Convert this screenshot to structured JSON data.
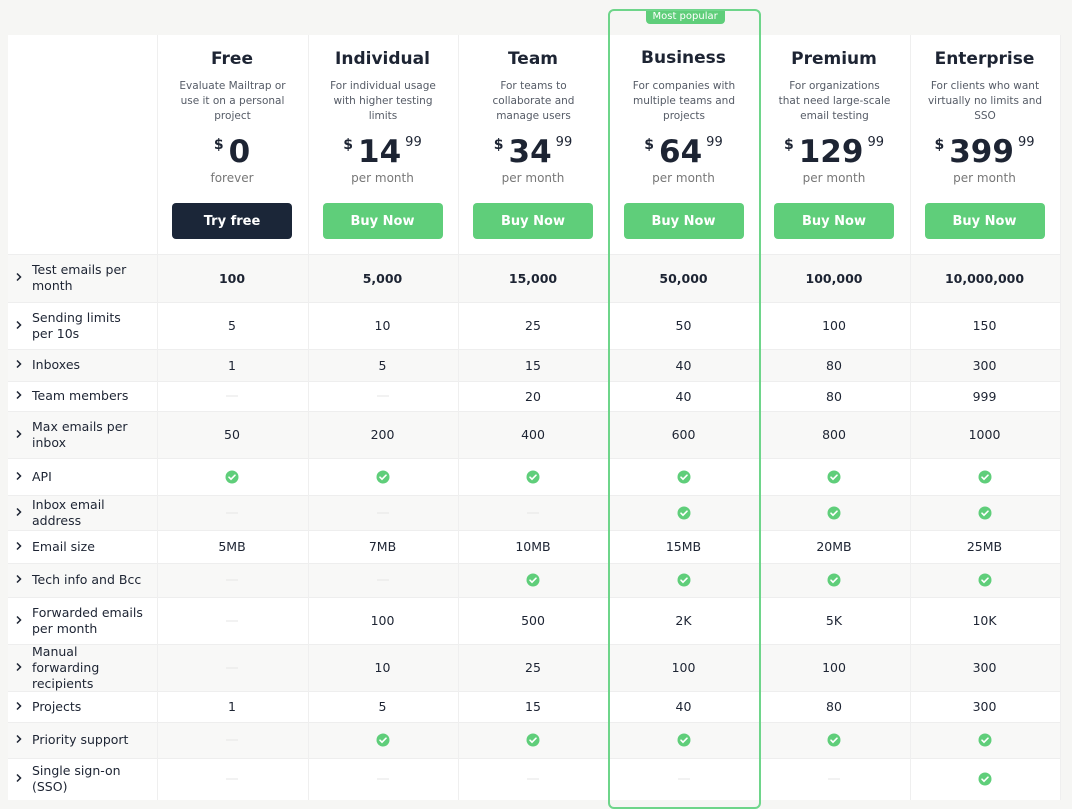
{
  "plans": [
    {
      "name": "Free",
      "description": "Evaluate Mailtrap or use it on a personal project",
      "currency": "$",
      "dollars": 0,
      "period": "forever",
      "button": "Try free"
    },
    {
      "name": "Individual",
      "description": "For individual usage with higher testing limits",
      "currency": "$",
      "dollars": 14,
      "cents": 99,
      "period": "per month",
      "button": "Buy Now"
    },
    {
      "name": "Team",
      "description": "For teams to collaborate and manage users",
      "currency": "$",
      "dollars": 34,
      "cents": 99,
      "period": "per month",
      "button": "Buy Now"
    },
    {
      "name": "Business",
      "badge": "Most popular",
      "description": "For companies with multiple teams and projects",
      "currency": "$",
      "dollars": 64,
      "cents": 99,
      "period": "per month",
      "button": "Buy Now"
    },
    {
      "name": "Premium",
      "description": "For organizations that need large-scale email testing",
      "currency": "$",
      "dollars": 129,
      "cents": 99,
      "period": "per month",
      "button": "Buy Now"
    },
    {
      "name": "Enterprise",
      "description": "For clients who want virtually no limits and SSO",
      "currency": "$",
      "dollars": 399,
      "cents": 99,
      "period": "per month",
      "button": "Buy Now"
    }
  ],
  "features": [
    {
      "label": "Test emails per month",
      "values": [
        "100",
        "5,000",
        "15,000",
        "50,000",
        "100,000",
        "10,000,000"
      ]
    },
    {
      "label": "Sending limits per 10s",
      "values": [
        "5",
        "10",
        "25",
        "50",
        "100",
        "150"
      ]
    },
    {
      "label": "Inboxes",
      "values": [
        "1",
        "5",
        "15",
        "40",
        "80",
        "300"
      ]
    },
    {
      "label": "Team members",
      "values": [
        false,
        false,
        "20",
        "40",
        "80",
        "999"
      ]
    },
    {
      "label": "Max emails per inbox",
      "values": [
        "50",
        "200",
        "400",
        "600",
        "800",
        "1000"
      ]
    },
    {
      "label": "API",
      "values": [
        true,
        true,
        true,
        true,
        true,
        true
      ]
    },
    {
      "label": "Inbox email address",
      "values": [
        false,
        false,
        false,
        true,
        true,
        true
      ]
    },
    {
      "label": "Email size",
      "values": [
        "5MB",
        "7MB",
        "10MB",
        "15MB",
        "20MB",
        "25MB"
      ]
    },
    {
      "label": "Tech info and Bcc",
      "values": [
        false,
        false,
        true,
        true,
        true,
        true
      ]
    },
    {
      "label": "Forwarded emails per month",
      "values": [
        false,
        "100",
        "500",
        "2K",
        "5K",
        "10K"
      ]
    },
    {
      "label": "Manual forwarding recipients",
      "values": [
        false,
        "10",
        "25",
        "100",
        "100",
        "300"
      ]
    },
    {
      "label": "Projects",
      "values": [
        "1",
        "5",
        "15",
        "40",
        "80",
        "300"
      ]
    },
    {
      "label": "Priority support",
      "values": [
        false,
        true,
        true,
        true,
        true,
        true
      ]
    },
    {
      "label": "Single sign-on (SSO)",
      "values": [
        false,
        false,
        false,
        false,
        false,
        true
      ]
    }
  ]
}
